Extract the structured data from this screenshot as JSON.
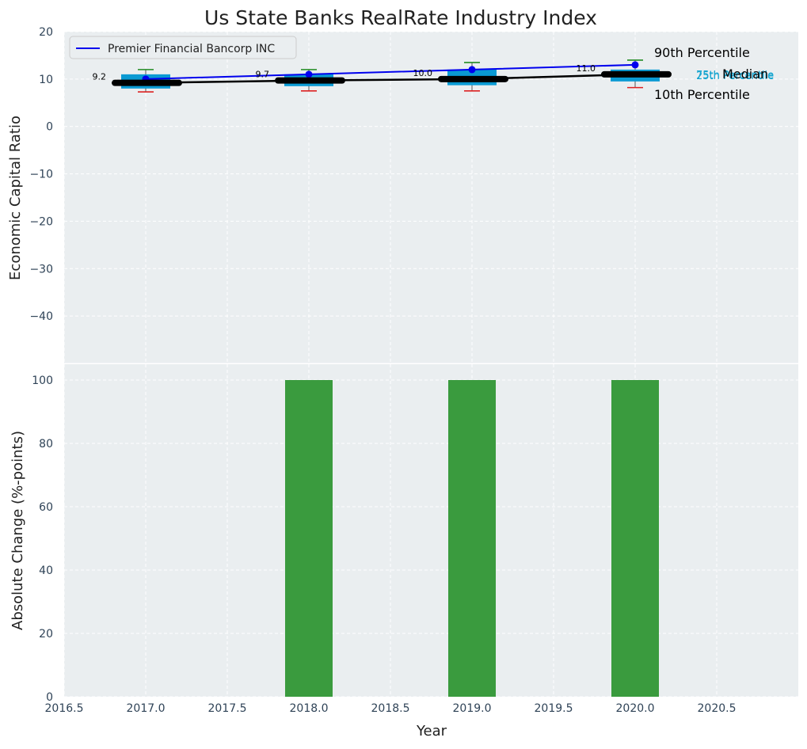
{
  "colors": {
    "background": "#eaeef0",
    "box": "#0a9ad3",
    "median": "#000000",
    "company": "#0000ee",
    "whisker_high": "#228b22",
    "whisker_low": "#dd2222",
    "bar": "#3a9b3e",
    "pct25_label": "#17a5d0"
  },
  "chart_data": [
    {
      "type": "box",
      "title": "Us State Banks RealRate Industry Index",
      "ylabel": "Economic Capital Ratio",
      "xlim": [
        2016.5,
        2021
      ],
      "ylim": [
        -50,
        20
      ],
      "yticks": [
        20,
        10,
        0,
        -10,
        -20,
        -30,
        -40
      ],
      "grid": true,
      "legend": {
        "position": "top-left",
        "entries": [
          "Premier Financial Bancorp INC"
        ]
      },
      "series": [
        {
          "name": "industry",
          "x": [
            2017,
            2018,
            2019,
            2020
          ],
          "p10": [
            7.3,
            7.5,
            7.5,
            8.2
          ],
          "p25": [
            8.0,
            8.5,
            8.7,
            9.5
          ],
          "median": [
            9.2,
            9.7,
            10.0,
            11.0
          ],
          "p75": [
            11.0,
            11.0,
            12.0,
            12.0
          ],
          "p90": [
            12.0,
            12.0,
            13.5,
            14.0
          ]
        },
        {
          "name": "Premier Financial Bancorp INC",
          "x": [
            2017,
            2018,
            2019,
            2020
          ],
          "values": [
            10.0,
            11.0,
            12.0,
            13.0
          ]
        }
      ],
      "median_labels": [
        "9.2",
        "9.7",
        "10.0",
        "11.0"
      ],
      "annotations": {
        "p90": "90th Percentile",
        "median": "Median",
        "p10": "10th Percentile",
        "p75": "75th Percentile",
        "p25": "25th Percentile"
      }
    },
    {
      "type": "bar",
      "ylabel": "Absolute Change (%-points)",
      "xlabel": "Year",
      "xlim": [
        2016.5,
        2021
      ],
      "ylim": [
        0,
        105
      ],
      "yticks": [
        0,
        20,
        40,
        60,
        80,
        100
      ],
      "xticks": [
        2016.5,
        2017.0,
        2017.5,
        2018.0,
        2018.5,
        2019.0,
        2019.5,
        2020.0,
        2020.5
      ],
      "xtick_labels": [
        "2016.5",
        "2017.0",
        "2017.5",
        "2018.0",
        "2018.5",
        "2019.0",
        "2019.5",
        "2020.0",
        "2020.5"
      ],
      "grid": true,
      "x": [
        2018,
        2019,
        2020
      ],
      "values": [
        100,
        100,
        100
      ]
    }
  ]
}
